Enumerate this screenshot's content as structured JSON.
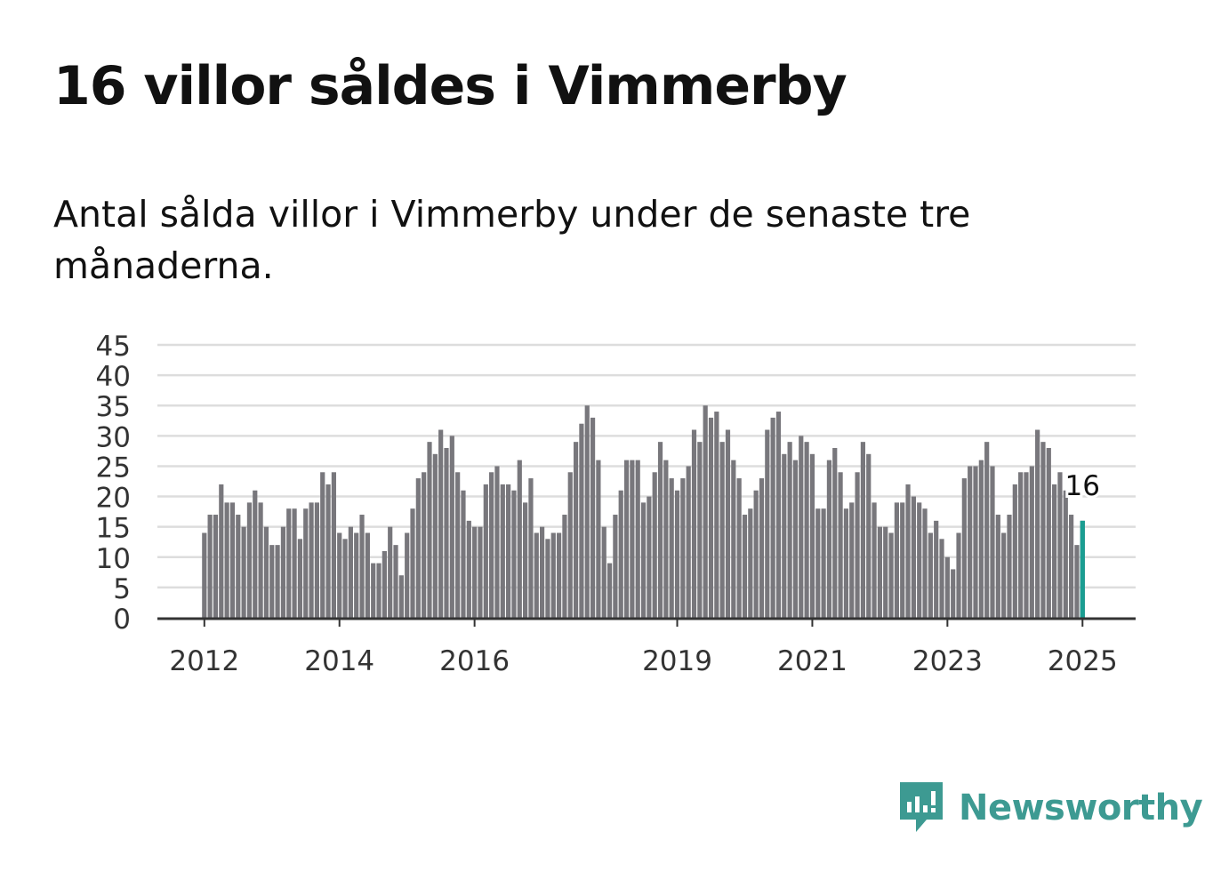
{
  "header": {
    "title": "16 villor såldes i Vimmerby",
    "subtitle": "Antal sålda villor i Vimmerby under de senaste tre månaderna."
  },
  "brand": {
    "name": "Newsworthy",
    "icon": "newsworthy-logo-icon",
    "color": "#3d9a92"
  },
  "colors": {
    "bar": "#78777c",
    "highlight": "#1a9e92",
    "grid": "#dddddd",
    "axis": "#333333"
  },
  "chart_data": {
    "type": "bar",
    "title": "16 villor såldes i Vimmerby",
    "subtitle": "Antal sålda villor i Vimmerby under de senaste tre månaderna.",
    "xlabel": "",
    "ylabel": "",
    "ylim": [
      0,
      45
    ],
    "yticks": [
      0,
      5,
      10,
      15,
      20,
      25,
      30,
      35,
      40,
      45
    ],
    "grid": true,
    "x_start": "2012-01",
    "x_ticks": [
      {
        "label": "2012",
        "month": "2012-01"
      },
      {
        "label": "2014",
        "month": "2014-01"
      },
      {
        "label": "2016",
        "month": "2016-01"
      },
      {
        "label": "2019",
        "month": "2019-01"
      },
      {
        "label": "2021",
        "month": "2021-01"
      },
      {
        "label": "2023",
        "month": "2023-01"
      },
      {
        "label": "2025",
        "month": "2025-01"
      }
    ],
    "highlight": {
      "month": "2025-01",
      "value": 16,
      "label": "16"
    },
    "series": [
      {
        "values": [
          14,
          17,
          17,
          22,
          19,
          19,
          17,
          15,
          19,
          21,
          19,
          15,
          12,
          12,
          15,
          18,
          18,
          13,
          18,
          19,
          19,
          24,
          22,
          24,
          14,
          13,
          15,
          14,
          17,
          14,
          9,
          9,
          11,
          15,
          12,
          7,
          14,
          18,
          23,
          24,
          29,
          27,
          31,
          28,
          30,
          24,
          21,
          16,
          15,
          15,
          22,
          24,
          25,
          22,
          22,
          21,
          26,
          19,
          23,
          14,
          15,
          13,
          14,
          14,
          17,
          24,
          29,
          32,
          35,
          33,
          26,
          15,
          9,
          17,
          21,
          26,
          26,
          26,
          19,
          20,
          24,
          29,
          26,
          23,
          21,
          23,
          25,
          31,
          29,
          35,
          33,
          34,
          29,
          31,
          26,
          23,
          17,
          18,
          21,
          23,
          31,
          33,
          34,
          27,
          29,
          26,
          30,
          29,
          27,
          18,
          18,
          26,
          28,
          24,
          18,
          19,
          24,
          29,
          27,
          19,
          15,
          15,
          14,
          19,
          19,
          22,
          20,
          19,
          18,
          14,
          16,
          13,
          10,
          8,
          14,
          23,
          25,
          25,
          26,
          29,
          25,
          17,
          14,
          17,
          22,
          24,
          24,
          25,
          31,
          29,
          28,
          22,
          24,
          21,
          17,
          12,
          16
        ]
      }
    ]
  }
}
